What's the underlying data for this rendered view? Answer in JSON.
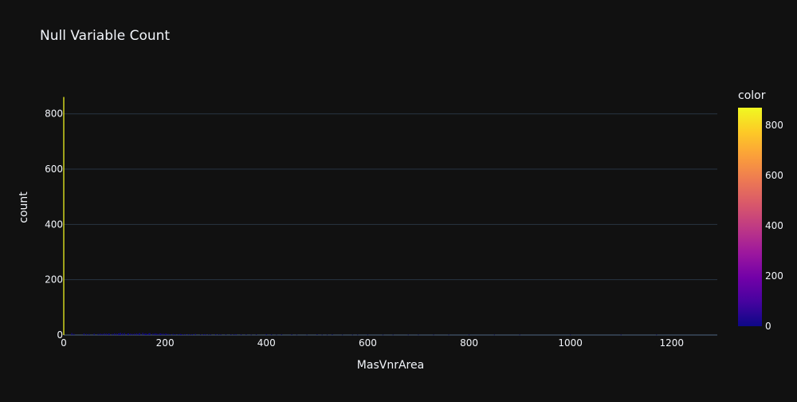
{
  "chart_data": {
    "type": "bar",
    "title": "Null Variable Count",
    "xlabel": "MasVnrArea",
    "ylabel": "count",
    "xlim": [
      0,
      1290
    ],
    "ylim": [
      0,
      880
    ],
    "xticks": [
      "0",
      "200",
      "400",
      "600",
      "800",
      "1000",
      "1200"
    ],
    "xtick_values": [
      0,
      200,
      400,
      600,
      800,
      1000,
      1200
    ],
    "yticks": [
      "0",
      "200",
      "400",
      "600",
      "800"
    ],
    "ytick_values": [
      0,
      200,
      400,
      600,
      800
    ],
    "grid": true,
    "colorbar": {
      "title": "color",
      "range": [
        0,
        870
      ],
      "ticks": [
        "0",
        "200",
        "400",
        "600",
        "800"
      ],
      "tick_values": [
        0,
        200,
        400,
        600,
        800
      ],
      "colors": [
        "#0d0887",
        "#46039f",
        "#7201a8",
        "#9c179e",
        "#bd3786",
        "#d8576b",
        "#ed7953",
        "#fb9f3a",
        "#fdca26",
        "#f0f921"
      ]
    },
    "x": [
      0,
      16,
      20,
      40,
      45,
      50,
      60,
      68,
      72,
      76,
      80,
      84,
      88,
      90,
      96,
      100,
      104,
      108,
      110,
      112,
      116,
      120,
      126,
      128,
      132,
      136,
      140,
      144,
      148,
      150,
      156,
      160,
      162,
      164,
      168,
      170,
      176,
      180,
      183,
      186,
      190,
      192,
      196,
      200,
      202,
      206,
      210,
      216,
      220,
      226,
      230,
      232,
      236,
      240,
      246,
      250,
      254,
      260,
      270,
      276,
      280,
      286,
      290,
      300,
      306,
      310,
      320,
      330,
      336,
      340,
      350,
      360,
      370,
      380,
      400,
      410,
      420,
      430,
      450,
      460,
      480,
      500,
      510,
      520,
      530,
      550,
      570,
      580,
      600,
      630,
      650,
      680,
      700,
      730,
      760,
      800,
      850,
      900,
      1000,
      1100,
      1170
    ],
    "values": [
      861,
      7,
      4,
      6,
      4,
      4,
      5,
      4,
      5,
      4,
      6,
      5,
      5,
      5,
      4,
      6,
      5,
      6,
      5,
      8,
      6,
      7,
      5,
      6,
      5,
      4,
      5,
      6,
      5,
      7,
      8,
      5,
      5,
      4,
      6,
      7,
      5,
      6,
      5,
      4,
      6,
      5,
      5,
      4,
      5,
      4,
      3,
      4,
      3,
      3,
      4,
      3,
      2,
      3,
      3,
      2,
      3,
      4,
      2,
      3,
      3,
      2,
      2,
      3,
      2,
      2,
      2,
      2,
      2,
      3,
      2,
      2,
      1,
      2,
      3,
      2,
      1,
      2,
      2,
      1,
      1,
      2,
      1,
      1,
      2,
      1,
      1,
      1,
      1,
      1,
      1,
      1,
      1,
      1,
      1,
      1,
      1,
      1,
      1,
      1,
      1
    ]
  }
}
